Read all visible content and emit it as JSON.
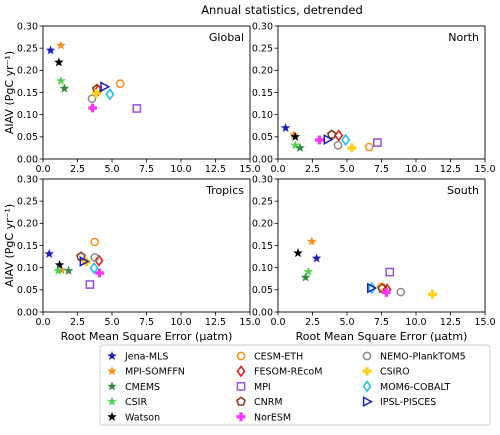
{
  "figure": {
    "title": "Annual statistics, detrended"
  },
  "chart_data": {
    "type": "scatter",
    "title": "Annual statistics, detrended",
    "xlabel": "Root Mean Square Error (μatm)",
    "ylabel": "AIAV (PgC yr⁻¹)",
    "xlim": [
      0,
      15
    ],
    "ylim": [
      0,
      0.3
    ],
    "xticks": [
      "0.0",
      "2.5",
      "5.0",
      "7.5",
      "10.0",
      "12.5",
      "15.0"
    ],
    "yticks": [
      "0.00",
      "0.05",
      "0.10",
      "0.15",
      "0.20",
      "0.25",
      "0.30"
    ],
    "grid": false,
    "legend_placement": "bottom",
    "series": [
      {
        "name": "Jena-MLS",
        "marker": "star",
        "color": "#1f1fbf",
        "filled": true
      },
      {
        "name": "MPI-SOMFFN",
        "marker": "star",
        "color": "#ff8c1a",
        "filled": true
      },
      {
        "name": "CMEMS",
        "marker": "star",
        "color": "#2e8b3e",
        "filled": true
      },
      {
        "name": "CSIR",
        "marker": "star",
        "color": "#4fd24f",
        "filled": true
      },
      {
        "name": "Watson",
        "marker": "star",
        "color": "#000000",
        "filled": true
      },
      {
        "name": "CESM-ETH",
        "marker": "circle",
        "color": "#ff8c1a",
        "filled": false
      },
      {
        "name": "FESOM-REcoM",
        "marker": "diamond",
        "color": "#e0201a",
        "filled": false
      },
      {
        "name": "MPI",
        "marker": "square",
        "color": "#9b4fd9",
        "filled": false
      },
      {
        "name": "CNRM",
        "marker": "pentagon",
        "color": "#8b3a1a",
        "filled": false
      },
      {
        "name": "NorESM",
        "marker": "plus",
        "color": "#ff33ff",
        "filled": true
      },
      {
        "name": "NEMO-PlankTOM5",
        "marker": "circle",
        "color": "#8c8c8c",
        "filled": false
      },
      {
        "name": "CSIRO",
        "marker": "plus",
        "color": "#ffd21a",
        "filled": true
      },
      {
        "name": "MOM6-COBALT",
        "marker": "diamond",
        "color": "#1fc0e8",
        "filled": false
      },
      {
        "name": "IPSL-PISCES",
        "marker": "triangle",
        "color": "#1f1fbf",
        "filled": false
      }
    ],
    "panels": [
      {
        "name": "Global",
        "points": [
          {
            "series": "Jena-MLS",
            "x": 0.55,
            "y": 0.245
          },
          {
            "series": "MPI-SOMFFN",
            "x": 1.3,
            "y": 0.256
          },
          {
            "series": "Watson",
            "x": 1.15,
            "y": 0.218
          },
          {
            "series": "CSIR",
            "x": 1.3,
            "y": 0.176
          },
          {
            "series": "CMEMS",
            "x": 1.55,
            "y": 0.159
          },
          {
            "series": "CESM-ETH",
            "x": 5.6,
            "y": 0.17
          },
          {
            "series": "FESOM-REcoM",
            "x": 4.0,
            "y": 0.155
          },
          {
            "series": "MPI",
            "x": 6.8,
            "y": 0.114
          },
          {
            "series": "CNRM",
            "x": 3.9,
            "y": 0.158
          },
          {
            "series": "NorESM",
            "x": 3.6,
            "y": 0.115
          },
          {
            "series": "NEMO-PlankTOM5",
            "x": 3.55,
            "y": 0.136
          },
          {
            "series": "CSIRO",
            "x": 3.85,
            "y": 0.148
          },
          {
            "series": "MOM6-COBALT",
            "x": 4.85,
            "y": 0.146
          },
          {
            "series": "IPSL-PISCES",
            "x": 4.45,
            "y": 0.163
          }
        ]
      },
      {
        "name": "North",
        "points": [
          {
            "series": "Jena-MLS",
            "x": 0.55,
            "y": 0.07
          },
          {
            "series": "MPI-SOMFFN",
            "x": 1.15,
            "y": 0.054
          },
          {
            "series": "Watson",
            "x": 1.25,
            "y": 0.05
          },
          {
            "series": "CSIR",
            "x": 1.25,
            "y": 0.031
          },
          {
            "series": "CMEMS",
            "x": 1.6,
            "y": 0.025
          },
          {
            "series": "CESM-ETH",
            "x": 6.6,
            "y": 0.027
          },
          {
            "series": "FESOM-REcoM",
            "x": 4.4,
            "y": 0.053
          },
          {
            "series": "MPI",
            "x": 7.2,
            "y": 0.037
          },
          {
            "series": "CNRM",
            "x": 3.9,
            "y": 0.055
          },
          {
            "series": "NorESM",
            "x": 3.0,
            "y": 0.043
          },
          {
            "series": "NEMO-PlankTOM5",
            "x": 4.35,
            "y": 0.031
          },
          {
            "series": "CSIRO",
            "x": 5.35,
            "y": 0.025
          },
          {
            "series": "MOM6-COBALT",
            "x": 4.9,
            "y": 0.043
          },
          {
            "series": "IPSL-PISCES",
            "x": 3.6,
            "y": 0.044
          }
        ]
      },
      {
        "name": "Tropics",
        "points": [
          {
            "series": "Jena-MLS",
            "x": 0.45,
            "y": 0.131
          },
          {
            "series": "MPI-SOMFFN",
            "x": 1.35,
            "y": 0.094
          },
          {
            "series": "Watson",
            "x": 1.2,
            "y": 0.106
          },
          {
            "series": "CSIR",
            "x": 1.1,
            "y": 0.093
          },
          {
            "series": "CMEMS",
            "x": 1.85,
            "y": 0.093
          },
          {
            "series": "CESM-ETH",
            "x": 3.75,
            "y": 0.158
          },
          {
            "series": "FESOM-REcoM",
            "x": 4.05,
            "y": 0.116
          },
          {
            "series": "MPI",
            "x": 3.4,
            "y": 0.062
          },
          {
            "series": "CNRM",
            "x": 2.75,
            "y": 0.125
          },
          {
            "series": "NorESM",
            "x": 4.1,
            "y": 0.088
          },
          {
            "series": "NEMO-PlankTOM5",
            "x": 3.75,
            "y": 0.123
          },
          {
            "series": "CSIRO",
            "x": 3.15,
            "y": 0.113
          },
          {
            "series": "MOM6-COBALT",
            "x": 3.7,
            "y": 0.099
          },
          {
            "series": "IPSL-PISCES",
            "x": 2.95,
            "y": 0.114
          }
        ]
      },
      {
        "name": "South",
        "points": [
          {
            "series": "Jena-MLS",
            "x": 2.8,
            "y": 0.121
          },
          {
            "series": "MPI-SOMFFN",
            "x": 2.45,
            "y": 0.159
          },
          {
            "series": "Watson",
            "x": 1.45,
            "y": 0.133
          },
          {
            "series": "CSIR",
            "x": 2.2,
            "y": 0.091
          },
          {
            "series": "CMEMS",
            "x": 2.0,
            "y": 0.078
          },
          {
            "series": "CESM-ETH",
            "x": 7.5,
            "y": 0.057
          },
          {
            "series": "FESOM-REcoM",
            "x": 7.9,
            "y": 0.051
          },
          {
            "series": "MPI",
            "x": 8.1,
            "y": 0.09
          },
          {
            "series": "CNRM",
            "x": 7.55,
            "y": 0.053
          },
          {
            "series": "NorESM",
            "x": 7.85,
            "y": 0.044
          },
          {
            "series": "NEMO-PlankTOM5",
            "x": 8.9,
            "y": 0.045
          },
          {
            "series": "CSIRO",
            "x": 11.2,
            "y": 0.04
          },
          {
            "series": "MOM6-COBALT",
            "x": 6.8,
            "y": 0.054
          },
          {
            "series": "IPSL-PISCES",
            "x": 6.75,
            "y": 0.054
          }
        ]
      }
    ]
  }
}
